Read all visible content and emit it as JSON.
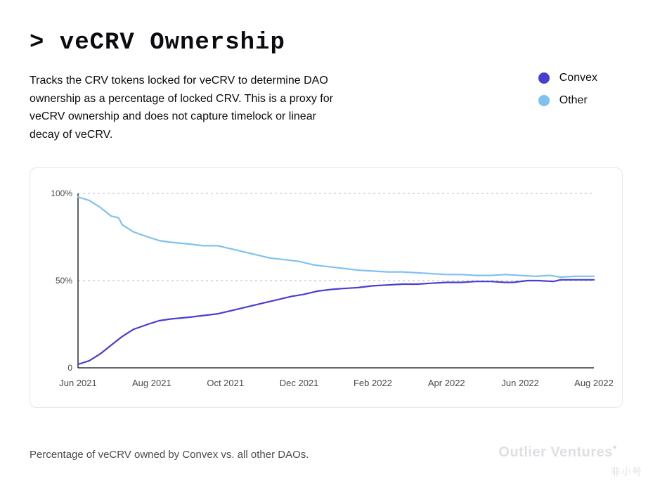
{
  "title": "> veCRV Ownership",
  "description": "Tracks the CRV tokens locked for veCRV to determine DAO ownership as a percentage of locked CRV. This is a proxy for veCRV ownership and does not capture timelock or linear decay of veCRV.",
  "footer_caption": "Percentage of veCRV owned by Convex vs. all other DAOs.",
  "brand": "Outlier Ventures",
  "watermark": "非小号",
  "legend": [
    {
      "label": "Convex",
      "color": "#4a3dd1"
    },
    {
      "label": "Other",
      "color": "#7fc1f0"
    }
  ],
  "chart": {
    "type": "line",
    "background": "#ffffff",
    "border_color": "#e6e6ee",
    "line_width": 2.2,
    "ylabel_fontsize": 12,
    "xlabel_fontsize": 13,
    "y": {
      "min": 0,
      "max": 100,
      "ticks": [
        0,
        50,
        100
      ],
      "tick_labels": [
        "0",
        "50%",
        "100%"
      ],
      "grid": {
        "at": [
          50,
          100
        ],
        "style": "dashed",
        "color": "#b8b8c0"
      }
    },
    "x": {
      "categories": [
        "Jun 2021",
        "Aug 2021",
        "Oct 2021",
        "Dec 2021",
        "Feb 2022",
        "Apr 2022",
        "Jun 2022",
        "Aug 2022"
      ]
    },
    "series": [
      {
        "name": "Convex",
        "color": "#4a3dd1",
        "points": [
          [
            0.0,
            2
          ],
          [
            0.3,
            4
          ],
          [
            0.6,
            8
          ],
          [
            0.9,
            13
          ],
          [
            1.2,
            18
          ],
          [
            1.5,
            22
          ],
          [
            1.9,
            25
          ],
          [
            2.2,
            27
          ],
          [
            2.5,
            28
          ],
          [
            3.0,
            29
          ],
          [
            3.4,
            30
          ],
          [
            3.8,
            31
          ],
          [
            4.2,
            33
          ],
          [
            4.6,
            35
          ],
          [
            5.0,
            37
          ],
          [
            5.4,
            39
          ],
          [
            5.8,
            41
          ],
          [
            6.1,
            42
          ],
          [
            6.5,
            44
          ],
          [
            6.9,
            45
          ],
          [
            7.2,
            45.5
          ],
          [
            7.6,
            46
          ],
          [
            8.0,
            47
          ],
          [
            8.4,
            47.5
          ],
          [
            8.8,
            48
          ],
          [
            9.2,
            48
          ],
          [
            9.6,
            48.5
          ],
          [
            10.0,
            49
          ],
          [
            10.4,
            49
          ],
          [
            10.8,
            49.5
          ],
          [
            11.2,
            49.5
          ],
          [
            11.6,
            49
          ],
          [
            11.8,
            49
          ],
          [
            12.2,
            50
          ],
          [
            12.5,
            50
          ],
          [
            12.9,
            49.5
          ],
          [
            13.1,
            50.5
          ],
          [
            13.5,
            50.5
          ],
          [
            14.0,
            50.5
          ]
        ]
      },
      {
        "name": "Other",
        "color": "#7fc1f0",
        "points": [
          [
            0.0,
            98
          ],
          [
            0.3,
            96
          ],
          [
            0.6,
            92
          ],
          [
            0.9,
            87
          ],
          [
            1.1,
            86
          ],
          [
            1.2,
            82
          ],
          [
            1.5,
            78
          ],
          [
            1.9,
            75
          ],
          [
            2.2,
            73
          ],
          [
            2.5,
            72
          ],
          [
            3.0,
            71
          ],
          [
            3.4,
            70
          ],
          [
            3.8,
            70
          ],
          [
            4.0,
            69
          ],
          [
            4.4,
            67
          ],
          [
            4.8,
            65
          ],
          [
            5.2,
            63
          ],
          [
            5.6,
            62
          ],
          [
            6.0,
            61
          ],
          [
            6.4,
            59
          ],
          [
            6.8,
            58
          ],
          [
            7.2,
            57
          ],
          [
            7.6,
            56
          ],
          [
            8.0,
            55.5
          ],
          [
            8.4,
            55
          ],
          [
            8.8,
            55
          ],
          [
            9.2,
            54.5
          ],
          [
            9.6,
            54
          ],
          [
            10.0,
            53.5
          ],
          [
            10.4,
            53.5
          ],
          [
            10.8,
            53
          ],
          [
            11.2,
            53
          ],
          [
            11.6,
            53.5
          ],
          [
            12.0,
            53
          ],
          [
            12.4,
            52.5
          ],
          [
            12.8,
            53
          ],
          [
            13.1,
            52
          ],
          [
            13.5,
            52.5
          ],
          [
            14.0,
            52.5
          ]
        ]
      }
    ]
  }
}
